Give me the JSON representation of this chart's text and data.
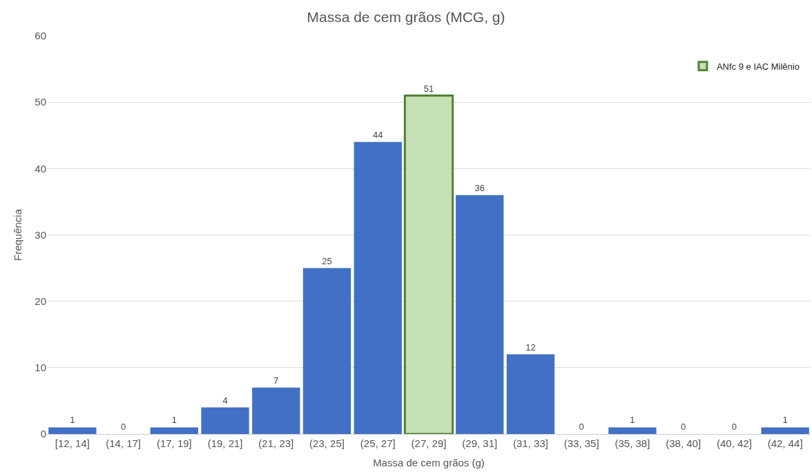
{
  "chart_data": {
    "type": "bar",
    "title": "Massa de cem grãos (MCG, g)",
    "xlabel": "Massa de cem grãos (g)",
    "ylabel": "Frequência",
    "categories": [
      "[12, 14]",
      "(14, 17]",
      "(17, 19]",
      "(19, 21]",
      "(21, 23]",
      "(23, 25]",
      "(25, 27]",
      "(27, 29]",
      "(29, 31]",
      "(31, 33]",
      "(33, 35]",
      "(35, 38]",
      "(38, 40]",
      "(40, 42]",
      "(42, 44]"
    ],
    "series": [
      {
        "color": "#4170c4",
        "values": [
          1,
          0,
          1,
          4,
          7,
          25,
          44,
          null,
          36,
          12,
          0,
          1,
          0,
          0,
          1
        ]
      },
      {
        "name": "ANfc 9 e IAC Milênio",
        "color": "#c5e0b4",
        "values": [
          null,
          null,
          null,
          null,
          null,
          null,
          null,
          51,
          null,
          null,
          null,
          null,
          null,
          null,
          null
        ]
      }
    ],
    "ylim": [
      0,
      60
    ],
    "yticks": [
      0,
      10,
      20,
      30,
      40,
      50,
      60
    ],
    "grid": "y",
    "legend": "top right",
    "data_labels": true
  }
}
